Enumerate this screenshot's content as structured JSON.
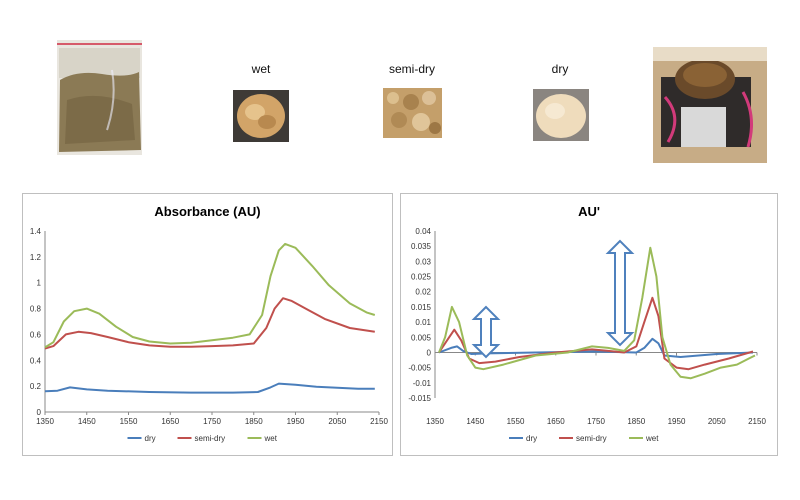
{
  "photos": {
    "labels": [
      "wet",
      "semi-dry",
      "dry"
    ]
  },
  "chart_data": [
    {
      "type": "line",
      "title": "Absorbance (AU)",
      "xlabel": "",
      "ylabel": "",
      "xlim": [
        1350,
        2150
      ],
      "ylim": [
        0,
        1.4
      ],
      "x_ticks": [
        "1350",
        "1450",
        "1550",
        "1650",
        "1750",
        "1850",
        "1950",
        "2050",
        "2150"
      ],
      "y_ticks": [
        "0",
        "0.2",
        "0.4",
        "0.6",
        "0.8",
        "1",
        "1.2",
        "1.4"
      ],
      "grid": false,
      "legend_position": "bottom",
      "series": [
        {
          "name": "dry",
          "color": "#4a7ebb",
          "points": [
            [
              1350,
              0.16
            ],
            [
              1380,
              0.165
            ],
            [
              1410,
              0.19
            ],
            [
              1450,
              0.175
            ],
            [
              1500,
              0.165
            ],
            [
              1600,
              0.155
            ],
            [
              1700,
              0.15
            ],
            [
              1800,
              0.15
            ],
            [
              1860,
              0.155
            ],
            [
              1890,
              0.19
            ],
            [
              1910,
              0.22
            ],
            [
              1950,
              0.21
            ],
            [
              2000,
              0.195
            ],
            [
              2100,
              0.18
            ],
            [
              2140,
              0.18
            ]
          ]
        },
        {
          "name": "semi-dry",
          "color": "#c0504d",
          "points": [
            [
              1350,
              0.49
            ],
            [
              1370,
              0.51
            ],
            [
              1400,
              0.6
            ],
            [
              1430,
              0.62
            ],
            [
              1460,
              0.61
            ],
            [
              1500,
              0.58
            ],
            [
              1550,
              0.54
            ],
            [
              1600,
              0.515
            ],
            [
              1650,
              0.505
            ],
            [
              1700,
              0.505
            ],
            [
              1750,
              0.51
            ],
            [
              1800,
              0.515
            ],
            [
              1850,
              0.53
            ],
            [
              1880,
              0.65
            ],
            [
              1900,
              0.8
            ],
            [
              1920,
              0.88
            ],
            [
              1940,
              0.86
            ],
            [
              1980,
              0.79
            ],
            [
              2020,
              0.72
            ],
            [
              2080,
              0.65
            ],
            [
              2140,
              0.62
            ]
          ]
        },
        {
          "name": "wet",
          "color": "#9bbb59",
          "points": [
            [
              1350,
              0.5
            ],
            [
              1370,
              0.54
            ],
            [
              1395,
              0.7
            ],
            [
              1420,
              0.78
            ],
            [
              1450,
              0.8
            ],
            [
              1480,
              0.76
            ],
            [
              1520,
              0.66
            ],
            [
              1560,
              0.58
            ],
            [
              1600,
              0.545
            ],
            [
              1650,
              0.53
            ],
            [
              1700,
              0.535
            ],
            [
              1750,
              0.555
            ],
            [
              1800,
              0.575
            ],
            [
              1840,
              0.6
            ],
            [
              1870,
              0.75
            ],
            [
              1890,
              1.05
            ],
            [
              1910,
              1.25
            ],
            [
              1925,
              1.3
            ],
            [
              1950,
              1.27
            ],
            [
              1990,
              1.13
            ],
            [
              2030,
              0.98
            ],
            [
              2080,
              0.84
            ],
            [
              2120,
              0.77
            ],
            [
              2140,
              0.75
            ]
          ]
        }
      ]
    },
    {
      "type": "line",
      "title": "AU'",
      "xlabel": "",
      "ylabel": "",
      "xlim": [
        1350,
        2150
      ],
      "ylim": [
        -0.015,
        0.04
      ],
      "x_ticks": [
        "1350",
        "1450",
        "1550",
        "1650",
        "1750",
        "1850",
        "1950",
        "2050",
        "2150"
      ],
      "y_ticks": [
        "0.04",
        "0.035",
        "0.03",
        "0.025",
        "0.02",
        "0.015",
        "0.01",
        "0.005",
        "0",
        "-0.005",
        "-0.01",
        "-0.015"
      ],
      "grid": false,
      "legend_position": "bottom",
      "series": [
        {
          "name": "dry",
          "color": "#4a7ebb",
          "points": [
            [
              1360,
              0
            ],
            [
              1390,
              0.0015
            ],
            [
              1405,
              0.002
            ],
            [
              1420,
              0.0005
            ],
            [
              1440,
              -0.0005
            ],
            [
              1480,
              -0.0003
            ],
            [
              1600,
              0
            ],
            [
              1750,
              0.0003
            ],
            [
              1850,
              0
            ],
            [
              1870,
              0.0015
            ],
            [
              1890,
              0.0045
            ],
            [
              1905,
              0.003
            ],
            [
              1920,
              -0.001
            ],
            [
              1960,
              -0.0015
            ],
            [
              2050,
              -0.0005
            ],
            [
              2140,
              0
            ]
          ]
        },
        {
          "name": "semi-dry",
          "color": "#c0504d",
          "points": [
            [
              1360,
              0
            ],
            [
              1380,
              0.004
            ],
            [
              1398,
              0.0075
            ],
            [
              1415,
              0.004
            ],
            [
              1435,
              -0.002
            ],
            [
              1460,
              -0.0035
            ],
            [
              1500,
              -0.003
            ],
            [
              1560,
              -0.0015
            ],
            [
              1650,
              0
            ],
            [
              1740,
              0.001
            ],
            [
              1780,
              0.0005
            ],
            [
              1820,
              0
            ],
            [
              1850,
              0.002
            ],
            [
              1870,
              0.01
            ],
            [
              1890,
              0.018
            ],
            [
              1905,
              0.012
            ],
            [
              1920,
              -0.002
            ],
            [
              1950,
              -0.005
            ],
            [
              1980,
              -0.0055
            ],
            [
              2020,
              -0.004
            ],
            [
              2080,
              -0.002
            ],
            [
              2140,
              0.0003
            ]
          ]
        },
        {
          "name": "wet",
          "color": "#9bbb59",
          "points": [
            [
              1360,
              0
            ],
            [
              1375,
              0.005
            ],
            [
              1392,
              0.015
            ],
            [
              1410,
              0.01
            ],
            [
              1430,
              -0.001
            ],
            [
              1450,
              -0.005
            ],
            [
              1470,
              -0.0055
            ],
            [
              1520,
              -0.004
            ],
            [
              1600,
              -0.001
            ],
            [
              1680,
              0
            ],
            [
              1740,
              0.002
            ],
            [
              1780,
              0.0015
            ],
            [
              1820,
              0.0005
            ],
            [
              1845,
              0.004
            ],
            [
              1865,
              0.018
            ],
            [
              1885,
              0.0345
            ],
            [
              1900,
              0.025
            ],
            [
              1915,
              0.005
            ],
            [
              1935,
              -0.004
            ],
            [
              1960,
              -0.008
            ],
            [
              1985,
              -0.0085
            ],
            [
              2020,
              -0.007
            ],
            [
              2060,
              -0.005
            ],
            [
              2100,
              -0.004
            ],
            [
              2130,
              -0.002
            ],
            [
              2145,
              -0.001
            ]
          ]
        }
      ]
    }
  ]
}
